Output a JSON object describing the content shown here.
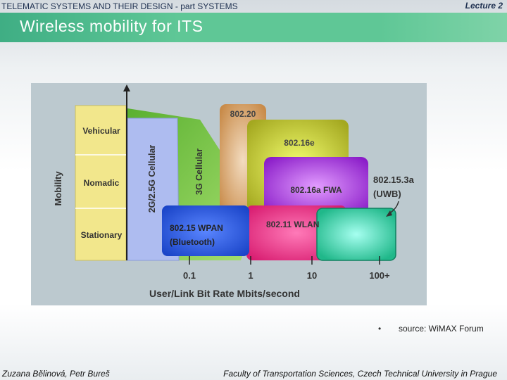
{
  "header": {
    "course_title": "TELEMATIC SYSTEMS AND THEIR DESIGN -  part SYSTEMS",
    "lecture": "Lecture 2"
  },
  "slide": {
    "title": "Wireless mobility for ITS"
  },
  "diagram": {
    "mobility_levels": [
      "Vehicular",
      "Nomadic",
      "Stationary"
    ],
    "y_axis_label": "Mobility",
    "x_axis_label": "User/Link Bit Rate Mbits/second",
    "x_ticks": [
      "0.1",
      "1",
      "10",
      "100+"
    ],
    "technologies": {
      "cellular_2g": "2G/2.5G Cellular",
      "cellular_3g": "3G Cellular",
      "wimax_80220": "802.20",
      "wimax_80216e": "802.16e",
      "wimax_80216a": "802.16a FWA",
      "wlan_80211": "802.11 WLAN",
      "wpan_line1": "802.15 WPAN",
      "wpan_line2": "(Bluetooth)",
      "uwb_line1": "802.15.3a",
      "uwb_line2": "(UWB)"
    },
    "colors": {
      "mobility_band": "#f2e78c",
      "cellular_2g": "#aebcf0",
      "cellular_3g": "#7cc24a",
      "wimax_80220": "#d8a46a",
      "wimax_80216e": "#bcc42a",
      "wimax_80216a": "#9a2ad8",
      "wlan_80211": "#e0207a",
      "wpan": "#2a55d8",
      "uwb": "#30c8a0"
    }
  },
  "source": {
    "bullet": "•",
    "text": "source: WiMAX Forum"
  },
  "footer": {
    "author": "Zuzana Bělinová, Petr Bureš",
    "institution": "Faculty of Transportation Sciences, Czech Technical University in Prague"
  }
}
